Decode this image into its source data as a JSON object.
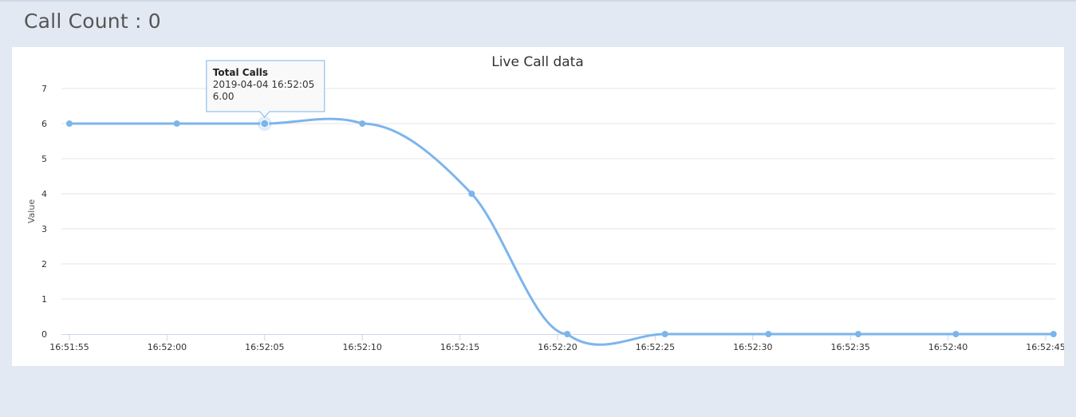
{
  "header": {
    "call_count_label": "Call Count : 0"
  },
  "colors": {
    "series": "#7cb5ec",
    "grid": "#e6e6e6",
    "axis": "#ccd6eb"
  },
  "chart_data": {
    "type": "line",
    "title": "Live Call data",
    "ylabel": "Value",
    "xlabel": "",
    "ylim": [
      0,
      7
    ],
    "yticks": [
      "0",
      "1",
      "2",
      "3",
      "4",
      "5",
      "6",
      "7"
    ],
    "xlim": [
      "16:51:55",
      "16:52:45"
    ],
    "xticks": [
      "16:51:55",
      "16:52:00",
      "16:52:05",
      "16:52:10",
      "16:52:15",
      "16:52:20",
      "16:52:25",
      "16:52:30",
      "16:52:35",
      "16:52:40",
      "16:52:45"
    ],
    "grid": true,
    "series": [
      {
        "name": "Total Calls",
        "x": [
          "16:51:55",
          "16:52:00.5",
          "16:52:05",
          "16:52:10",
          "16:52:15.6",
          "16:52:20.5",
          "16:52:25.5",
          "16:52:30.8",
          "16:52:35.4",
          "16:52:40.4",
          "16:52:45.4"
        ],
        "values": [
          6,
          6,
          6,
          6,
          4,
          0,
          0,
          0,
          0,
          0,
          0
        ]
      }
    ],
    "tooltip": {
      "series_name": "Total Calls",
      "timestamp": "2019-04-04 16:52:05",
      "value": "6.00",
      "point_index": 2
    }
  }
}
